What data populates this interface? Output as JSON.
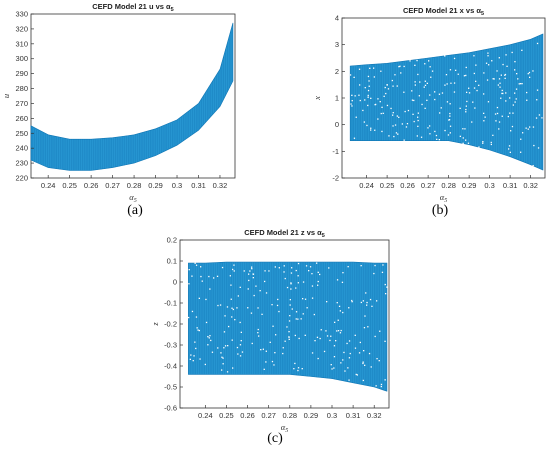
{
  "colors": {
    "band": "#1a8fcf",
    "band_dark": "#1177b5",
    "axis": "#333333"
  },
  "chart_data": [
    {
      "type": "scatter",
      "title_main": "CEFD Model 21 u vs α",
      "title_sub": "5",
      "xlabel_main": "α",
      "xlabel_sub": "5",
      "ylabel": "u",
      "xlim": [
        0.232,
        0.327
      ],
      "ylim": [
        220,
        330
      ],
      "xticks": [
        "0.24",
        "0.25",
        "0.26",
        "0.27",
        "0.28",
        "0.29",
        "0.3",
        "0.31",
        "0.32"
      ],
      "xtick_values": [
        0.24,
        0.25,
        0.26,
        0.27,
        0.28,
        0.29,
        0.3,
        0.31,
        0.32
      ],
      "yticks": [
        "220",
        "230",
        "240",
        "250",
        "260",
        "270",
        "280",
        "290",
        "300",
        "310",
        "320",
        "330"
      ],
      "ytick_values": [
        220,
        230,
        240,
        250,
        260,
        270,
        280,
        290,
        300,
        310,
        320,
        330
      ],
      "series": [
        {
          "x": [
            0.232,
            0.24,
            0.25,
            0.26,
            0.27,
            0.28,
            0.29,
            0.3,
            0.31,
            0.32,
            0.326
          ],
          "upper": [
            255,
            249,
            246,
            246,
            247,
            249,
            253,
            259,
            270,
            293,
            324
          ],
          "lower": [
            232,
            227,
            225,
            225,
            227,
            230,
            235,
            242,
            252,
            268,
            285
          ]
        }
      ],
      "caption": "(a)"
    },
    {
      "type": "scatter",
      "title_main": "CEFD Model 21 x vs α",
      "title_sub": "5",
      "xlabel_main": "α",
      "xlabel_sub": "5",
      "ylabel": "x",
      "xlim": [
        0.228,
        0.327
      ],
      "ylim": [
        -2,
        4
      ],
      "xticks": [
        "0.24",
        "0.25",
        "0.26",
        "0.27",
        "0.28",
        "0.29",
        "0.3",
        "0.31",
        "0.32"
      ],
      "xtick_values": [
        0.24,
        0.25,
        0.26,
        0.27,
        0.28,
        0.29,
        0.3,
        0.31,
        0.32
      ],
      "yticks": [
        "-2",
        "-1",
        "0",
        "1",
        "2",
        "3",
        "4"
      ],
      "ytick_values": [
        -2,
        -1,
        0,
        1,
        2,
        3,
        4
      ],
      "series": [
        {
          "x": [
            0.232,
            0.24,
            0.25,
            0.26,
            0.27,
            0.28,
            0.29,
            0.3,
            0.31,
            0.32,
            0.326
          ],
          "upper": [
            2.2,
            2.25,
            2.3,
            2.4,
            2.5,
            2.6,
            2.7,
            2.85,
            3.0,
            3.2,
            3.4
          ],
          "lower": [
            -0.6,
            -0.6,
            -0.6,
            -0.6,
            -0.6,
            -0.6,
            -0.75,
            -0.95,
            -1.2,
            -1.5,
            -1.7
          ]
        }
      ],
      "caption": "(b)"
    },
    {
      "type": "scatter",
      "title_main": "CEFD Model 21 z vs α",
      "title_sub": "5",
      "xlabel_main": "α",
      "xlabel_sub": "5",
      "ylabel": "z",
      "xlim": [
        0.228,
        0.327
      ],
      "ylim": [
        -0.6,
        0.2
      ],
      "xticks": [
        "0.24",
        "0.25",
        "0.26",
        "0.27",
        "0.28",
        "0.29",
        "0.3",
        "0.31",
        "0.32"
      ],
      "xtick_values": [
        0.24,
        0.25,
        0.26,
        0.27,
        0.28,
        0.29,
        0.3,
        0.31,
        0.32
      ],
      "yticks": [
        "-0.6",
        "-0.5",
        "-0.4",
        "-0.3",
        "-0.2",
        "-0.1",
        "0",
        "0.1",
        "0.2"
      ],
      "ytick_values": [
        -0.6,
        -0.5,
        -0.4,
        -0.3,
        -0.2,
        -0.1,
        0,
        0.1,
        0.2
      ],
      "series": [
        {
          "x": [
            0.232,
            0.24,
            0.25,
            0.26,
            0.27,
            0.28,
            0.29,
            0.3,
            0.31,
            0.32,
            0.326
          ],
          "upper": [
            0.09,
            0.09,
            0.095,
            0.095,
            0.095,
            0.095,
            0.095,
            0.095,
            0.095,
            0.09,
            0.09
          ],
          "lower": [
            -0.44,
            -0.44,
            -0.44,
            -0.44,
            -0.44,
            -0.44,
            -0.45,
            -0.46,
            -0.48,
            -0.5,
            -0.52
          ]
        }
      ],
      "caption": "(c)"
    }
  ]
}
